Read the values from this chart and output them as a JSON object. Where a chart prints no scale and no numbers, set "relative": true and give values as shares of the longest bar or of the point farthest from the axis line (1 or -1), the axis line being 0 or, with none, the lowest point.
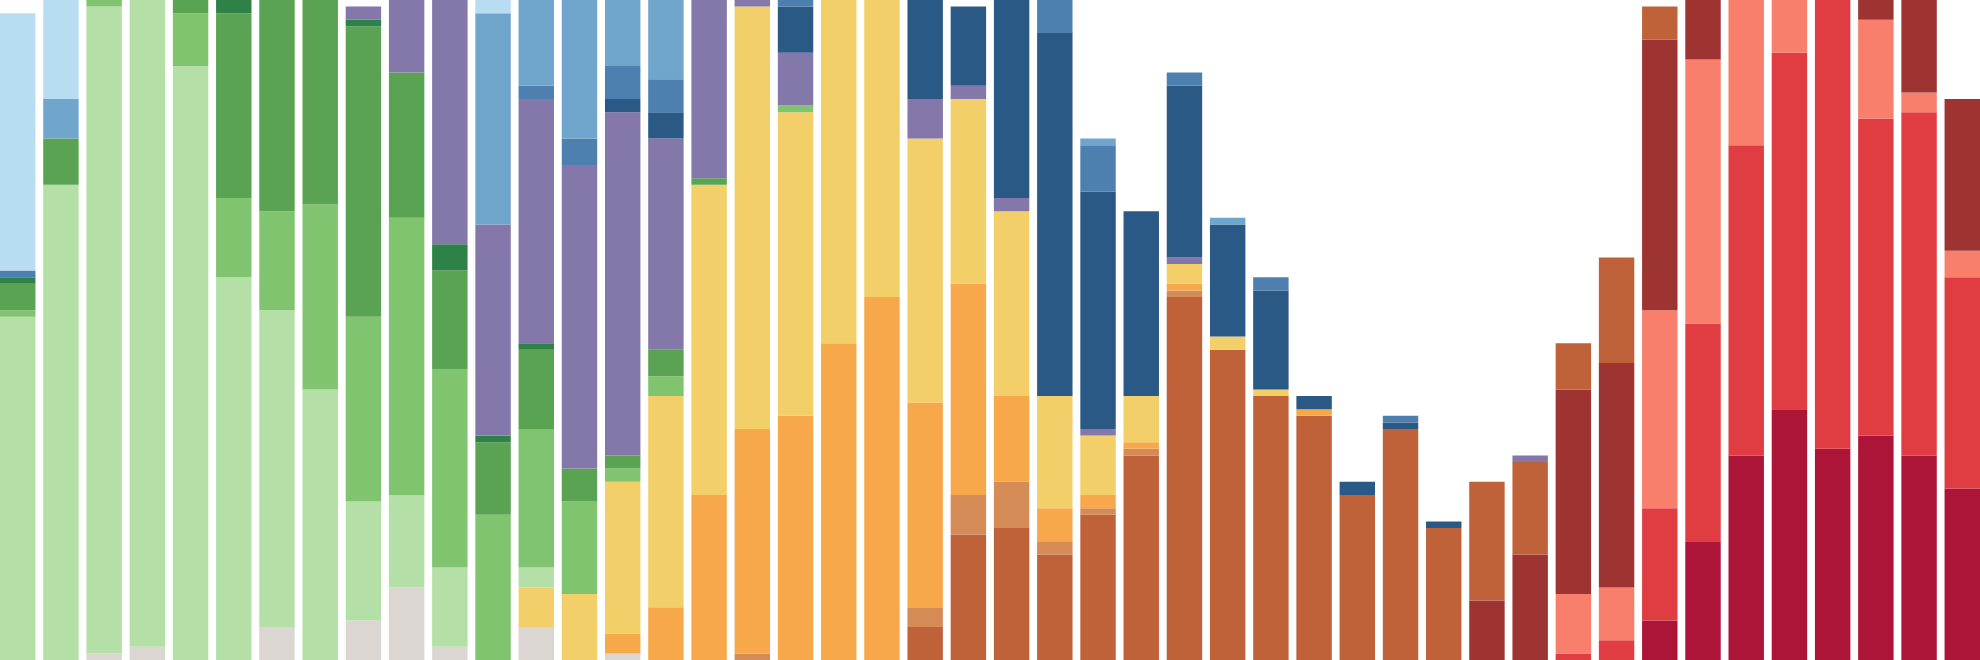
{
  "chart_data": {
    "type": "bar",
    "stacked": true,
    "relative": true,
    "categories": [
      null,
      null,
      null,
      null,
      null,
      null,
      null,
      null,
      null,
      null,
      null,
      null,
      null,
      null,
      null,
      null,
      null,
      null,
      null,
      null,
      null,
      null,
      null,
      null,
      null,
      null,
      null,
      null,
      null,
      null,
      null,
      null,
      null,
      null,
      null,
      null,
      null,
      null,
      null,
      null,
      null,
      null,
      null,
      null,
      null,
      null
    ],
    "series": [
      {
        "color": "#dcd6d3",
        "values": [
          null,
          null,
          0.01,
          0.02,
          null,
          null,
          0.05,
          null,
          0.06,
          0.11,
          0.02,
          null,
          0.05,
          null,
          0.01,
          null,
          null,
          null,
          null,
          null,
          null,
          null,
          null,
          null,
          null,
          null,
          null,
          null,
          null,
          null,
          null,
          null,
          null,
          null,
          null,
          null,
          null,
          null,
          null,
          null,
          null,
          null,
          null,
          null,
          null,
          null
        ]
      },
      {
        "color": "#ad1538",
        "values": [
          null,
          null,
          null,
          null,
          null,
          null,
          null,
          null,
          null,
          null,
          null,
          null,
          null,
          null,
          null,
          null,
          null,
          null,
          null,
          null,
          null,
          null,
          null,
          null,
          null,
          null,
          null,
          null,
          null,
          null,
          null,
          null,
          null,
          null,
          null,
          null,
          null,
          null,
          0.06,
          0.18,
          0.31,
          0.38,
          0.32,
          0.34,
          0.31,
          0.26
        ]
      },
      {
        "color": "#e03d43",
        "values": [
          null,
          null,
          null,
          null,
          null,
          null,
          null,
          null,
          null,
          null,
          null,
          null,
          null,
          null,
          null,
          null,
          null,
          null,
          null,
          null,
          null,
          null,
          null,
          null,
          null,
          null,
          null,
          null,
          null,
          null,
          null,
          null,
          null,
          null,
          null,
          null,
          0.01,
          0.03,
          0.17,
          0.33,
          0.47,
          0.54,
          0.68,
          0.48,
          0.52,
          0.32
        ]
      },
      {
        "color": "#f77f6c",
        "values": [
          null,
          null,
          null,
          null,
          null,
          null,
          null,
          null,
          null,
          null,
          null,
          null,
          null,
          null,
          null,
          null,
          null,
          null,
          null,
          null,
          null,
          null,
          null,
          null,
          null,
          null,
          null,
          null,
          null,
          null,
          null,
          null,
          null,
          null,
          null,
          null,
          0.09,
          0.08,
          0.3,
          0.4,
          0.22,
          0.08,
          null,
          0.15,
          0.03,
          0.04
        ]
      },
      {
        "color": "#9e3432",
        "values": [
          null,
          null,
          null,
          null,
          null,
          null,
          null,
          null,
          null,
          null,
          null,
          null,
          null,
          null,
          null,
          null,
          null,
          null,
          null,
          null,
          null,
          null,
          null,
          null,
          null,
          null,
          null,
          null,
          null,
          null,
          null,
          null,
          null,
          null,
          0.09,
          0.16,
          0.31,
          0.34,
          0.41,
          0.09,
          null,
          null,
          null,
          0.03,
          0.14,
          0.23
        ]
      },
      {
        "color": "#bf623a",
        "values": [
          null,
          null,
          null,
          null,
          null,
          null,
          null,
          null,
          null,
          null,
          null,
          null,
          null,
          null,
          null,
          null,
          null,
          null,
          null,
          null,
          null,
          0.05,
          0.19,
          0.2,
          0.16,
          0.22,
          0.31,
          0.55,
          0.47,
          0.4,
          0.37,
          0.25,
          0.35,
          0.2,
          0.18,
          0.14,
          0.07,
          0.16,
          0.05,
          null,
          null,
          null,
          null,
          null,
          null,
          null
        ]
      },
      {
        "color": "#d48b55",
        "values": [
          null,
          null,
          null,
          null,
          null,
          null,
          null,
          null,
          null,
          null,
          null,
          null,
          null,
          null,
          null,
          null,
          null,
          0.01,
          null,
          null,
          null,
          0.03,
          0.06,
          0.07,
          0.02,
          0.01,
          0.01,
          0.01,
          null,
          null,
          null,
          null,
          null,
          null,
          null,
          null,
          null,
          null,
          null,
          null,
          null,
          null,
          null,
          null,
          null,
          null
        ]
      },
      {
        "color": "#f6a84b",
        "values": [
          null,
          null,
          null,
          null,
          null,
          null,
          null,
          null,
          null,
          null,
          null,
          null,
          null,
          null,
          0.03,
          0.08,
          0.25,
          0.34,
          0.37,
          0.48,
          0.55,
          0.31,
          0.32,
          0.13,
          0.05,
          0.02,
          0.01,
          0.01,
          null,
          null,
          0.01,
          null,
          null,
          null,
          null,
          null,
          null,
          null,
          null,
          null,
          null,
          null,
          null,
          null,
          null,
          null
        ]
      },
      {
        "color": "#f2cf69",
        "values": [
          null,
          null,
          null,
          null,
          null,
          null,
          null,
          null,
          null,
          null,
          null,
          null,
          0.06,
          0.1,
          0.23,
          0.32,
          0.47,
          0.64,
          0.46,
          0.52,
          0.45,
          0.4,
          0.28,
          0.28,
          0.17,
          0.09,
          0.07,
          0.03,
          0.02,
          0.01,
          null,
          null,
          null,
          null,
          null,
          null,
          null,
          null,
          null,
          null,
          null,
          null,
          null,
          null,
          null,
          null
        ]
      },
      {
        "color": "#b4e0a7",
        "values": [
          0.52,
          0.72,
          0.98,
          0.98,
          0.9,
          0.58,
          0.48,
          0.41,
          0.18,
          0.14,
          0.12,
          null,
          0.03,
          null,
          null,
          null,
          null,
          null,
          null,
          null,
          null,
          null,
          null,
          null,
          null,
          null,
          null,
          null,
          null,
          null,
          null,
          null,
          null,
          null,
          null,
          null,
          null,
          null,
          null,
          null,
          null,
          null,
          null,
          null,
          null,
          null
        ]
      },
      {
        "color": "#80c46f",
        "values": [
          0.01,
          null,
          0.01,
          null,
          0.08,
          0.12,
          0.15,
          0.28,
          0.28,
          0.42,
          0.3,
          0.22,
          0.21,
          0.14,
          0.02,
          0.03,
          null,
          null,
          0.01,
          null,
          null,
          null,
          null,
          null,
          null,
          null,
          null,
          null,
          null,
          null,
          null,
          null,
          null,
          null,
          null,
          null,
          null,
          null,
          null,
          null,
          null,
          null,
          null,
          null,
          null,
          null
        ]
      },
      {
        "color": "#59a353",
        "values": [
          0.04,
          0.07,
          null,
          null,
          0.02,
          0.28,
          0.32,
          0.31,
          0.44,
          0.22,
          0.15,
          0.11,
          0.12,
          0.05,
          0.02,
          0.04,
          0.01,
          null,
          null,
          null,
          null,
          null,
          null,
          null,
          null,
          null,
          null,
          null,
          null,
          null,
          null,
          null,
          null,
          null,
          null,
          null,
          null,
          null,
          null,
          null,
          null,
          null,
          null,
          null,
          null,
          null
        ]
      },
      {
        "color": "#2e8247",
        "values": [
          0.01,
          null,
          null,
          null,
          null,
          0.02,
          null,
          null,
          0.01,
          null,
          0.04,
          0.01,
          0.01,
          null,
          null,
          null,
          null,
          null,
          null,
          null,
          null,
          null,
          null,
          null,
          null,
          null,
          null,
          null,
          null,
          null,
          null,
          null,
          null,
          null,
          null,
          null,
          null,
          null,
          null,
          null,
          null,
          null,
          null,
          null,
          null,
          null
        ]
      },
      {
        "color": "#8477aa",
        "values": [
          null,
          null,
          null,
          null,
          null,
          null,
          null,
          null,
          0.02,
          0.11,
          0.37,
          0.32,
          0.37,
          0.46,
          0.52,
          0.32,
          0.27,
          0.01,
          0.08,
          null,
          null,
          0.06,
          0.02,
          0.02,
          null,
          0.01,
          null,
          0.01,
          null,
          null,
          null,
          null,
          null,
          null,
          null,
          0.01,
          null,
          null,
          null,
          null,
          null,
          null,
          null,
          null,
          null,
          null
        ]
      },
      {
        "color": "#2b5986",
        "values": [
          null,
          null,
          null,
          null,
          null,
          null,
          null,
          null,
          null,
          null,
          null,
          null,
          null,
          null,
          0.02,
          0.04,
          null,
          null,
          0.07,
          null,
          null,
          0.15,
          0.12,
          0.3,
          0.55,
          0.36,
          0.28,
          0.26,
          0.17,
          0.15,
          0.02,
          0.02,
          0.01,
          0.01,
          null,
          null,
          null,
          null,
          null,
          null,
          null,
          null,
          null,
          null,
          null,
          null
        ]
      },
      {
        "color": "#4d80af",
        "values": [
          0.01,
          null,
          null,
          null,
          null,
          null,
          null,
          null,
          null,
          null,
          null,
          null,
          0.02,
          0.04,
          0.05,
          0.05,
          null,
          null,
          0.01,
          null,
          null,
          null,
          null,
          null,
          0.05,
          0.07,
          null,
          0.02,
          null,
          0.02,
          null,
          null,
          0.01,
          null,
          null,
          null,
          null,
          null,
          null,
          null,
          null,
          null,
          null,
          null,
          null,
          null
        ]
      },
      {
        "color": "#70a5cc",
        "values": [
          null,
          0.06,
          null,
          null,
          null,
          null,
          null,
          null,
          null,
          null,
          null,
          0.32,
          0.13,
          0.21,
          0.1,
          0.12,
          null,
          null,
          null,
          null,
          null,
          null,
          null,
          null,
          null,
          0.01,
          null,
          null,
          0.01,
          null,
          null,
          null,
          null,
          null,
          null,
          null,
          null,
          null,
          null,
          null,
          null,
          null,
          null,
          null,
          null,
          null
        ]
      },
      {
        "color": "#b9ddf0",
        "values": [
          0.39,
          0.15,
          null,
          null,
          null,
          null,
          null,
          null,
          null,
          null,
          null,
          0.02,
          null,
          null,
          null,
          null,
          null,
          null,
          null,
          null,
          null,
          null,
          null,
          null,
          null,
          null,
          null,
          null,
          null,
          null,
          null,
          null,
          null,
          null,
          null,
          null,
          null,
          null,
          null,
          null,
          null,
          null,
          null,
          null,
          null,
          null
        ]
      }
    ]
  }
}
